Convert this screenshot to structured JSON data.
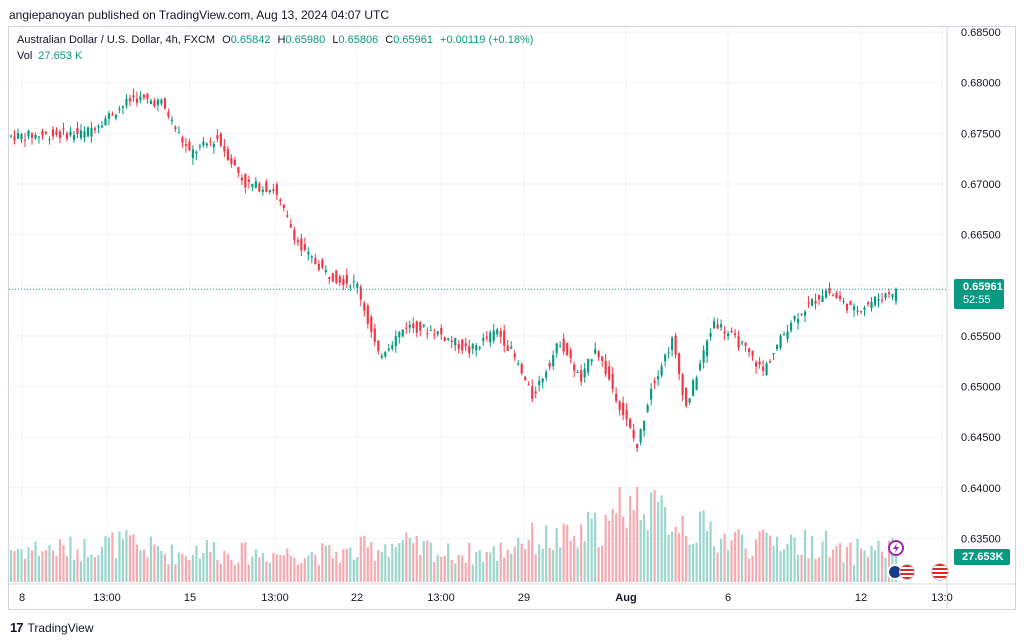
{
  "publisher_line": "angiepanoyan published on TradingView.com, Aug 13, 2024 04:07 UTC",
  "legend": {
    "symbol": "Australian Dollar / U.S. Dollar, 4h, FXCM",
    "o_label": "O",
    "o_value": "0.65842",
    "h_label": "H",
    "h_value": "0.65980",
    "l_label": "L",
    "l_value": "0.65806",
    "c_label": "C",
    "c_value": "0.65961",
    "change": "+0.00119 (+0.18%)",
    "vol_label": "Vol",
    "vol_value": "27.653 K"
  },
  "price_tag": {
    "price": "0.65961",
    "countdown": "52:55"
  },
  "volume_tag": "27.653K",
  "footer": {
    "brand": "TradingView",
    "logo_icon": "tradingview-logo-icon"
  },
  "event_icons": [
    "lightning-icon",
    "australia-flag-icon",
    "us-flag-icon",
    "us-flag-icon"
  ],
  "colors": {
    "up": "#089981",
    "down": "#f23645",
    "up_vol": "#9ad6cc",
    "down_vol": "#f7a9b0",
    "grid": "#f0f3fa"
  },
  "chart_data": {
    "type": "candlestick",
    "timeframe": "4h",
    "ylim": [
      0.6305,
      0.6855
    ],
    "y_ticks": [
      "0.68500",
      "0.68000",
      "0.67500",
      "0.67000",
      "0.66500",
      "0.66000",
      "0.65500",
      "0.65000",
      "0.64500",
      "0.64000",
      "0.63500"
    ],
    "x_ticks": [
      "8",
      "13:00",
      "15",
      "13:00",
      "22",
      "13:00",
      "29",
      "Aug",
      "6",
      "12",
      "13:0"
    ],
    "last_price": 0.65961,
    "segments": [
      {
        "n": 22,
        "start": 0.6747,
        "end": 0.675,
        "vol": 0.35
      },
      {
        "n": 14,
        "start": 0.675,
        "end": 0.6785,
        "vol": 0.4
      },
      {
        "n": 8,
        "start": 0.6785,
        "end": 0.678,
        "vol": 0.35
      },
      {
        "n": 8,
        "start": 0.678,
        "end": 0.673,
        "vol": 0.3
      },
      {
        "n": 8,
        "start": 0.673,
        "end": 0.6745,
        "vol": 0.35
      },
      {
        "n": 8,
        "start": 0.6745,
        "end": 0.67,
        "vol": 0.3
      },
      {
        "n": 8,
        "start": 0.67,
        "end": 0.6695,
        "vol": 0.3
      },
      {
        "n": 8,
        "start": 0.6695,
        "end": 0.6635,
        "vol": 0.3
      },
      {
        "n": 8,
        "start": 0.6635,
        "end": 0.661,
        "vol": 0.3
      },
      {
        "n": 8,
        "start": 0.661,
        "end": 0.66,
        "vol": 0.3
      },
      {
        "n": 6,
        "start": 0.66,
        "end": 0.653,
        "vol": 0.35
      },
      {
        "n": 8,
        "start": 0.653,
        "end": 0.656,
        "vol": 0.4
      },
      {
        "n": 8,
        "start": 0.656,
        "end": 0.6555,
        "vol": 0.35
      },
      {
        "n": 10,
        "start": 0.6555,
        "end": 0.6535,
        "vol": 0.3
      },
      {
        "n": 8,
        "start": 0.6535,
        "end": 0.6555,
        "vol": 0.3
      },
      {
        "n": 4,
        "start": 0.6555,
        "end": 0.6535,
        "vol": 0.35
      },
      {
        "n": 6,
        "start": 0.6535,
        "end": 0.649,
        "vol": 0.45
      },
      {
        "n": 8,
        "start": 0.649,
        "end": 0.6545,
        "vol": 0.45
      },
      {
        "n": 6,
        "start": 0.6545,
        "end": 0.6505,
        "vol": 0.45
      },
      {
        "n": 4,
        "start": 0.6505,
        "end": 0.654,
        "vol": 0.55
      },
      {
        "n": 6,
        "start": 0.654,
        "end": 0.649,
        "vol": 0.6
      },
      {
        "n": 6,
        "start": 0.649,
        "end": 0.644,
        "vol": 0.85
      },
      {
        "n": 4,
        "start": 0.644,
        "end": 0.65,
        "vol": 0.9
      },
      {
        "n": 6,
        "start": 0.65,
        "end": 0.6545,
        "vol": 0.7
      },
      {
        "n": 4,
        "start": 0.6545,
        "end": 0.648,
        "vol": 0.65
      },
      {
        "n": 8,
        "start": 0.648,
        "end": 0.6565,
        "vol": 0.55
      },
      {
        "n": 8,
        "start": 0.6565,
        "end": 0.654,
        "vol": 0.45
      },
      {
        "n": 6,
        "start": 0.654,
        "end": 0.6515,
        "vol": 0.4
      },
      {
        "n": 8,
        "start": 0.6515,
        "end": 0.6565,
        "vol": 0.45
      },
      {
        "n": 10,
        "start": 0.6565,
        "end": 0.6595,
        "vol": 0.4
      },
      {
        "n": 8,
        "start": 0.6595,
        "end": 0.6575,
        "vol": 0.3
      },
      {
        "n": 12,
        "start": 0.6575,
        "end": 0.65961,
        "vol": 0.35
      }
    ]
  }
}
